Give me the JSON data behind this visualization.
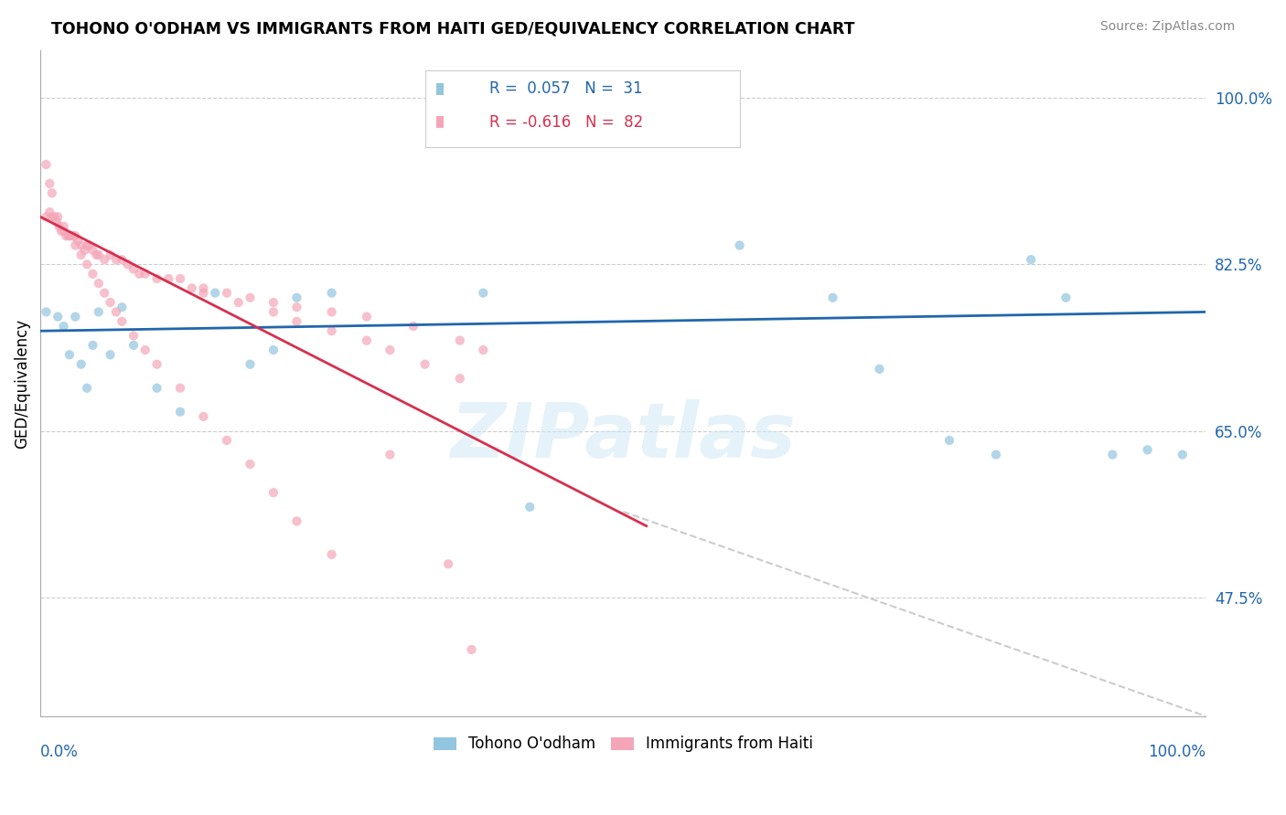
{
  "title": "TOHONO O'ODHAM VS IMMIGRANTS FROM HAITI GED/EQUIVALENCY CORRELATION CHART",
  "source": "Source: ZipAtlas.com",
  "ylabel": "GED/Equivalency",
  "ytick_labels": [
    "100.0%",
    "82.5%",
    "65.0%",
    "47.5%"
  ],
  "ytick_values": [
    1.0,
    0.825,
    0.65,
    0.475
  ],
  "xmin": 0.0,
  "xmax": 1.0,
  "ymin": 0.35,
  "ymax": 1.05,
  "blue_color": "#92c5de",
  "pink_color": "#f4a6b8",
  "blue_line_color": "#2166ac",
  "pink_line_color": "#d6304e",
  "watermark_text": "ZIPatlas",
  "blue_scatter_x": [
    0.005,
    0.015,
    0.02,
    0.025,
    0.03,
    0.035,
    0.04,
    0.045,
    0.05,
    0.06,
    0.07,
    0.08,
    0.1,
    0.12,
    0.15,
    0.18,
    0.2,
    0.22,
    0.25,
    0.6,
    0.68,
    0.72,
    0.78,
    0.82,
    0.85,
    0.88,
    0.92,
    0.95,
    0.98,
    0.38,
    0.42
  ],
  "blue_scatter_y": [
    0.775,
    0.77,
    0.76,
    0.73,
    0.77,
    0.72,
    0.695,
    0.74,
    0.775,
    0.73,
    0.78,
    0.74,
    0.695,
    0.67,
    0.795,
    0.72,
    0.735,
    0.79,
    0.795,
    0.845,
    0.79,
    0.715,
    0.64,
    0.625,
    0.83,
    0.79,
    0.625,
    0.63,
    0.625,
    0.795,
    0.57
  ],
  "pink_scatter_x": [
    0.005,
    0.008,
    0.01,
    0.012,
    0.014,
    0.016,
    0.018,
    0.02,
    0.022,
    0.024,
    0.026,
    0.028,
    0.03,
    0.032,
    0.035,
    0.038,
    0.04,
    0.042,
    0.045,
    0.048,
    0.05,
    0.055,
    0.06,
    0.065,
    0.07,
    0.075,
    0.08,
    0.085,
    0.09,
    0.1,
    0.11,
    0.12,
    0.13,
    0.14,
    0.16,
    0.18,
    0.2,
    0.22,
    0.25,
    0.28,
    0.32,
    0.36,
    0.38,
    0.14,
    0.17,
    0.2,
    0.22,
    0.25,
    0.28,
    0.3,
    0.33,
    0.36,
    0.005,
    0.008,
    0.01,
    0.015,
    0.02,
    0.025,
    0.03,
    0.035,
    0.04,
    0.045,
    0.05,
    0.055,
    0.06,
    0.065,
    0.07,
    0.08,
    0.09,
    0.1,
    0.12,
    0.14,
    0.16,
    0.18,
    0.2,
    0.22,
    0.25,
    0.3,
    0.35,
    0.37
  ],
  "pink_scatter_y": [
    0.875,
    0.88,
    0.875,
    0.875,
    0.87,
    0.865,
    0.86,
    0.86,
    0.855,
    0.855,
    0.855,
    0.855,
    0.855,
    0.85,
    0.845,
    0.84,
    0.845,
    0.845,
    0.84,
    0.835,
    0.835,
    0.83,
    0.835,
    0.83,
    0.83,
    0.825,
    0.82,
    0.815,
    0.815,
    0.81,
    0.81,
    0.81,
    0.8,
    0.8,
    0.795,
    0.79,
    0.785,
    0.78,
    0.775,
    0.77,
    0.76,
    0.745,
    0.735,
    0.795,
    0.785,
    0.775,
    0.765,
    0.755,
    0.745,
    0.735,
    0.72,
    0.705,
    0.93,
    0.91,
    0.9,
    0.875,
    0.865,
    0.855,
    0.845,
    0.835,
    0.825,
    0.815,
    0.805,
    0.795,
    0.785,
    0.775,
    0.765,
    0.75,
    0.735,
    0.72,
    0.695,
    0.665,
    0.64,
    0.615,
    0.585,
    0.555,
    0.52,
    0.625,
    0.51,
    0.42
  ],
  "blue_line_x": [
    0.0,
    1.0
  ],
  "blue_line_y": [
    0.755,
    0.775
  ],
  "pink_line_x": [
    0.0,
    0.52
  ],
  "pink_line_y": [
    0.875,
    0.55
  ],
  "dashed_line_x": [
    0.5,
    1.0
  ],
  "dashed_line_y": [
    0.565,
    0.35
  ]
}
